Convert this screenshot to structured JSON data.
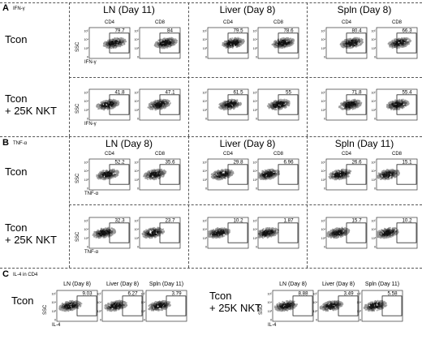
{
  "panel_a": {
    "letter": "A",
    "subtitle": "IFN-γ",
    "columns": [
      "LN (Day 11)",
      "Liver (Day 8)",
      "Spln (Day 8)"
    ],
    "subheads": [
      "CD4",
      "CD8"
    ],
    "rows": [
      {
        "label_line1": "Tcon",
        "label_line2": "",
        "values": [
          "79.7",
          "84",
          "79.5",
          "78.6",
          "80.4",
          "66.3"
        ]
      },
      {
        "label_line1": "Tcon",
        "label_line2": "+ 25K NKT",
        "values": [
          "41.8",
          "47.1",
          "61.5",
          "55",
          "71.8",
          "55.4"
        ]
      }
    ],
    "ylabel": "SSC",
    "xlabel": "IFN-γ"
  },
  "panel_b": {
    "letter": "B",
    "subtitle": "TNF-α",
    "columns": [
      "LN (Day 8)",
      "Liver (Day 8)",
      "Spln (Day 11)"
    ],
    "subheads": [
      "CD4",
      "CD8"
    ],
    "rows": [
      {
        "label_line1": "Tcon",
        "label_line2": "",
        "values": [
          "52.2",
          "35.6",
          "29.8",
          "6.96",
          "26.6",
          "15.1"
        ]
      },
      {
        "label_line1": "Tcon",
        "label_line2": "+ 25K NKT",
        "values": [
          "32.3",
          "23.7",
          "10.2",
          "1.87",
          "15.7",
          "10.2"
        ]
      }
    ],
    "ylabel": "SSC",
    "xlabel": "TNF-α"
  },
  "panel_c": {
    "letter": "C",
    "subtitle": "IL-4 in CD4",
    "groups": [
      {
        "label_line1": "Tcon",
        "label_line2": "",
        "heads": [
          "LN (Day 8)",
          "Liver (Day 8)",
          "Spln (Day 11)"
        ],
        "values": [
          "9.03",
          "6.27",
          "3.79"
        ]
      },
      {
        "label_line1": "Tcon",
        "label_line2": "+ 25K NKT",
        "heads": [
          "LN (Day 8)",
          "Liver (Day 8)",
          "Spln (Day 11)"
        ],
        "values": [
          "8.88",
          "3.49",
          "5.58"
        ]
      }
    ],
    "ylabel": "SSC",
    "xlabel": "IL-4"
  },
  "ticks": {
    "y": [
      "10⁵",
      "10⁴",
      "10³",
      "0"
    ],
    "x": [
      "0",
      "10³",
      "10⁴",
      "10⁵"
    ]
  },
  "colors": {
    "dots": "#1a1a1a",
    "lines": "#555555"
  }
}
